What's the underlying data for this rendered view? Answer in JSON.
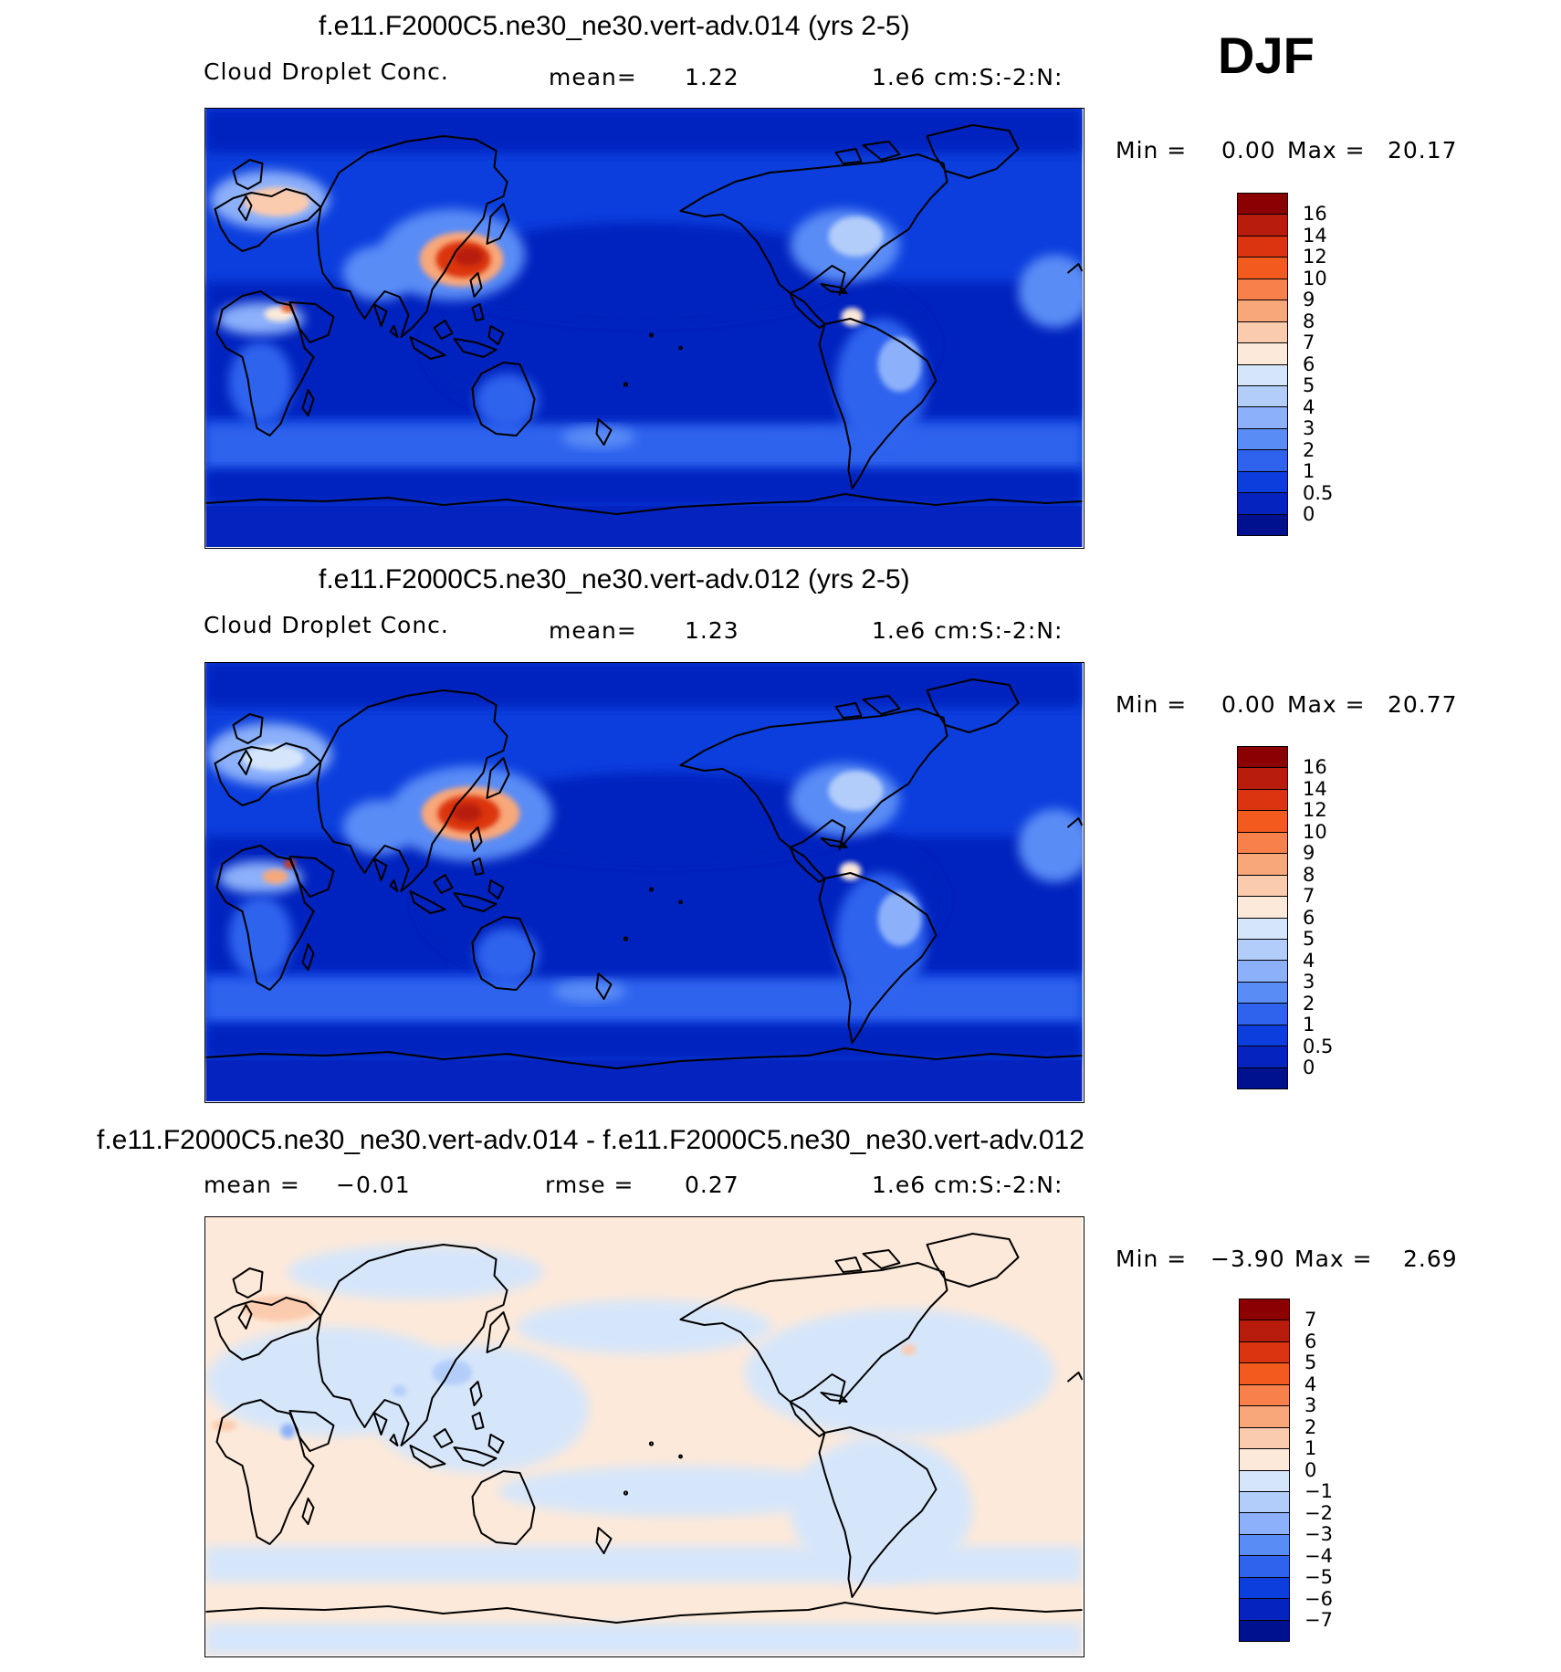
{
  "season": "DJF",
  "panels": [
    {
      "title": "f.e11.F2000C5.ne30_ne30.vert-adv.014 (yrs 2-5)",
      "left_label": "Cloud Droplet Conc.",
      "mid_label": "mean=",
      "mid_value": "1.22",
      "units": "1.e6 cm:S:-2:N:",
      "min_label": "Min =",
      "min_value": "0.00",
      "max_label": "Max =",
      "max_value": "20.17",
      "map_kind": "field",
      "colorbar_labels": [
        "16",
        "14",
        "12",
        "10",
        "9",
        "8",
        "7",
        "6",
        "5",
        "4",
        "3",
        "2",
        "1",
        "0.5",
        "0"
      ],
      "colorbar_colors": [
        "#8b0000",
        "#b71c0c",
        "#db3410",
        "#f25a1e",
        "#f8804b",
        "#f8a77a",
        "#fbcbae",
        "#fde9d9",
        "#d6e6fa",
        "#b3cdfa",
        "#8cb0fa",
        "#5a8cf6",
        "#2f63ee",
        "#0b3edd",
        "#0523be",
        "#001190"
      ]
    },
    {
      "title": "f.e11.F2000C5.ne30_ne30.vert-adv.012 (yrs 2-5)",
      "left_label": "Cloud Droplet Conc.",
      "mid_label": "mean=",
      "mid_value": "1.23",
      "units": "1.e6 cm:S:-2:N:",
      "min_label": "Min =",
      "min_value": "0.00",
      "max_label": "Max =",
      "max_value": "20.77",
      "map_kind": "field",
      "colorbar_labels": [
        "16",
        "14",
        "12",
        "10",
        "9",
        "8",
        "7",
        "6",
        "5",
        "4",
        "3",
        "2",
        "1",
        "0.5",
        "0"
      ],
      "colorbar_colors": [
        "#8b0000",
        "#b71c0c",
        "#db3410",
        "#f25a1e",
        "#f8804b",
        "#f8a77a",
        "#fbcbae",
        "#fde9d9",
        "#d6e6fa",
        "#b3cdfa",
        "#8cb0fa",
        "#5a8cf6",
        "#2f63ee",
        "#0b3edd",
        "#0523be",
        "#001190"
      ]
    },
    {
      "title": "f.e11.F2000C5.ne30_ne30.vert-adv.014 - f.e11.F2000C5.ne30_ne30.vert-adv.012",
      "left_label": "mean =",
      "left_value": "−0.01",
      "mid_label": "rmse =",
      "mid_value": "0.27",
      "units": "1.e6 cm:S:-2:N:",
      "min_label": "Min =",
      "min_value": "−3.90",
      "max_label": "Max =",
      "max_value": "2.69",
      "map_kind": "diff",
      "colorbar_labels": [
        "7",
        "6",
        "5",
        "4",
        "3",
        "2",
        "1",
        "0",
        "−1",
        "−2",
        "−3",
        "−4",
        "−5",
        "−6",
        "−7"
      ],
      "colorbar_colors": [
        "#8b0000",
        "#b71c0c",
        "#db3410",
        "#f25a1e",
        "#f8804b",
        "#f8a77a",
        "#fbcbae",
        "#fde9d9",
        "#d6e6fa",
        "#b3cdfa",
        "#8cb0fa",
        "#5a8cf6",
        "#2f63ee",
        "#0b3edd",
        "#0523be",
        "#001190"
      ]
    }
  ]
}
